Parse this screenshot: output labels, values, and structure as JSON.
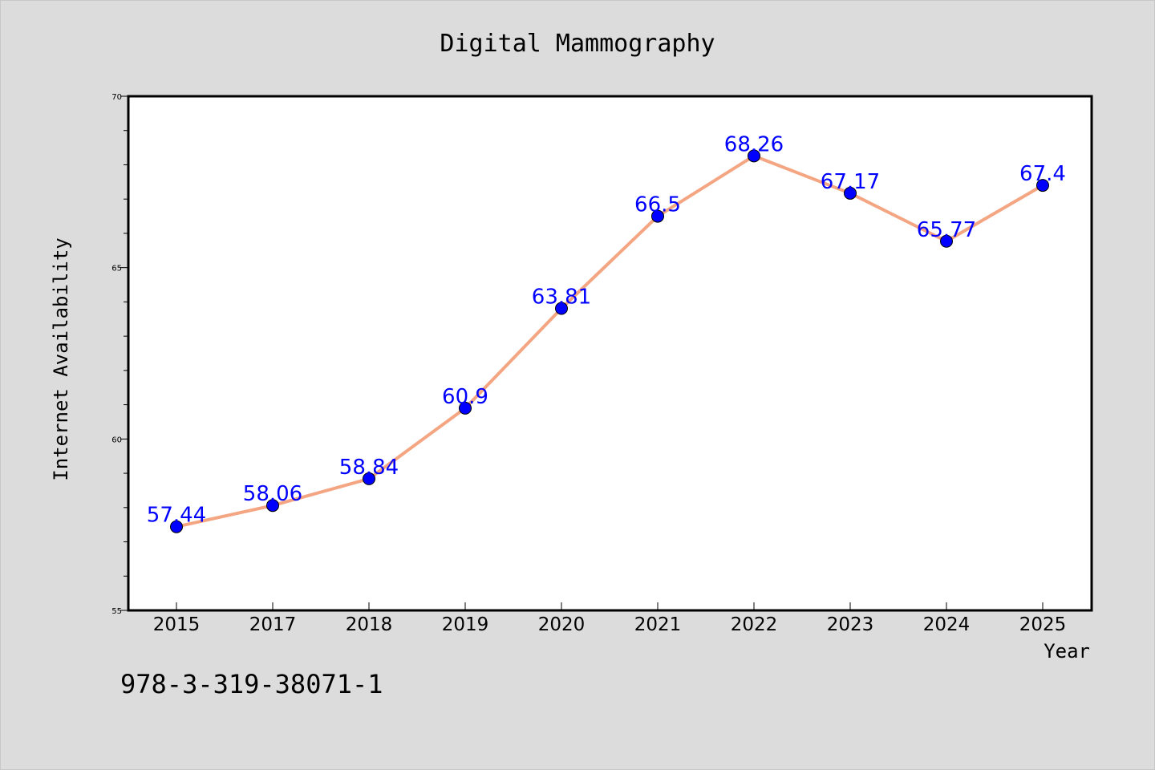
{
  "chart_data": {
    "type": "line",
    "title": "Digital Mammography",
    "xlabel": "Year",
    "ylabel": "Internet Availability",
    "categories": [
      "2015",
      "2017",
      "2018",
      "2019",
      "2020",
      "2021",
      "2022",
      "2023",
      "2024",
      "2025"
    ],
    "series": [
      {
        "values": [
          57.44,
          58.06,
          58.84,
          60.9,
          63.81,
          66.5,
          68.26,
          67.17,
          65.77,
          67.4
        ]
      }
    ],
    "data_labels": [
      "57.44",
      "58.06",
      "58.84",
      "60.9",
      "63.81",
      "66.5",
      "68.26",
      "67.17",
      "65.77",
      "67.4"
    ],
    "ylim": [
      55,
      70
    ],
    "yticks": [
      "55",
      "60",
      "65",
      "70"
    ],
    "grid": false,
    "legend": "none",
    "colors": {
      "line": "#f4a582",
      "marker": "#0000ff",
      "label": "#0000ff"
    }
  },
  "footnote": "978-3-319-38071-1"
}
